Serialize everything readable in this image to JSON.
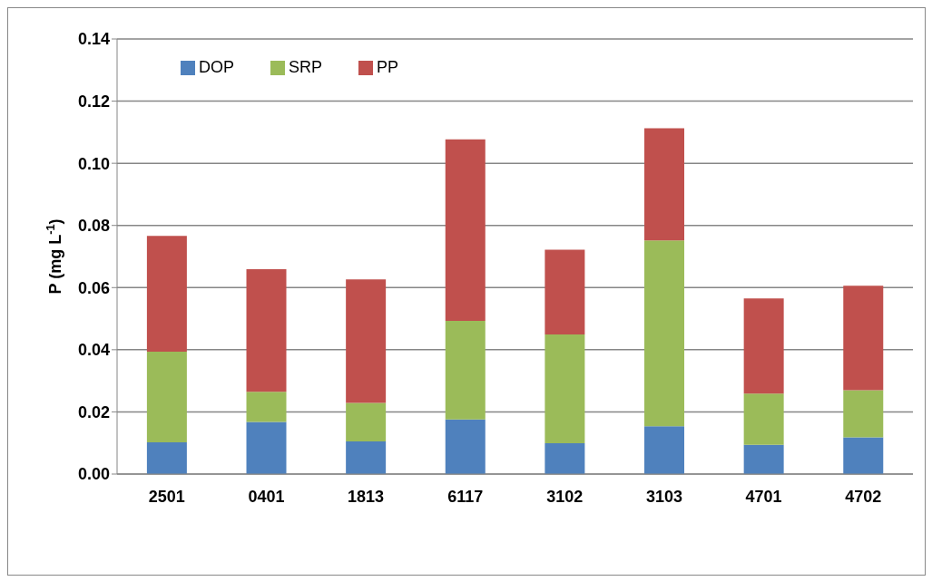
{
  "chart_data": {
    "type": "bar",
    "stacked": true,
    "ylabel": "P (mg L$^{-1}$)",
    "categories": [
      "2501",
      "0401",
      "1813",
      "6117",
      "3102",
      "3103",
      "4701",
      "4702"
    ],
    "series": [
      {
        "name": "DOP",
        "color": "#4f81bd",
        "values": [
          0.0102,
          0.0168,
          0.0105,
          0.0176,
          0.0099,
          0.0154,
          0.0094,
          0.0118
        ]
      },
      {
        "name": "SRP",
        "color": "#9bbb59",
        "values": [
          0.0292,
          0.0097,
          0.0124,
          0.0317,
          0.035,
          0.0598,
          0.0165,
          0.0152
        ]
      },
      {
        "name": "PP",
        "color": "#c0504d",
        "values": [
          0.0372,
          0.0394,
          0.0397,
          0.0584,
          0.0273,
          0.0361,
          0.0306,
          0.0336
        ]
      }
    ],
    "ylim": [
      0,
      0.14
    ],
    "yticks": [
      {
        "value": 0,
        "label": "0.00"
      },
      {
        "value": 0.02,
        "label": "0.02"
      },
      {
        "value": 0.04,
        "label": "0.04"
      },
      {
        "value": 0.06,
        "label": "0.06"
      },
      {
        "value": 0.08,
        "label": "0.08"
      },
      {
        "value": 0.1,
        "label": "0.10"
      },
      {
        "value": 0.12,
        "label": "0.12"
      },
      {
        "value": 0.14,
        "label": "0.14"
      }
    ],
    "grid": "y",
    "legend": "top left"
  }
}
